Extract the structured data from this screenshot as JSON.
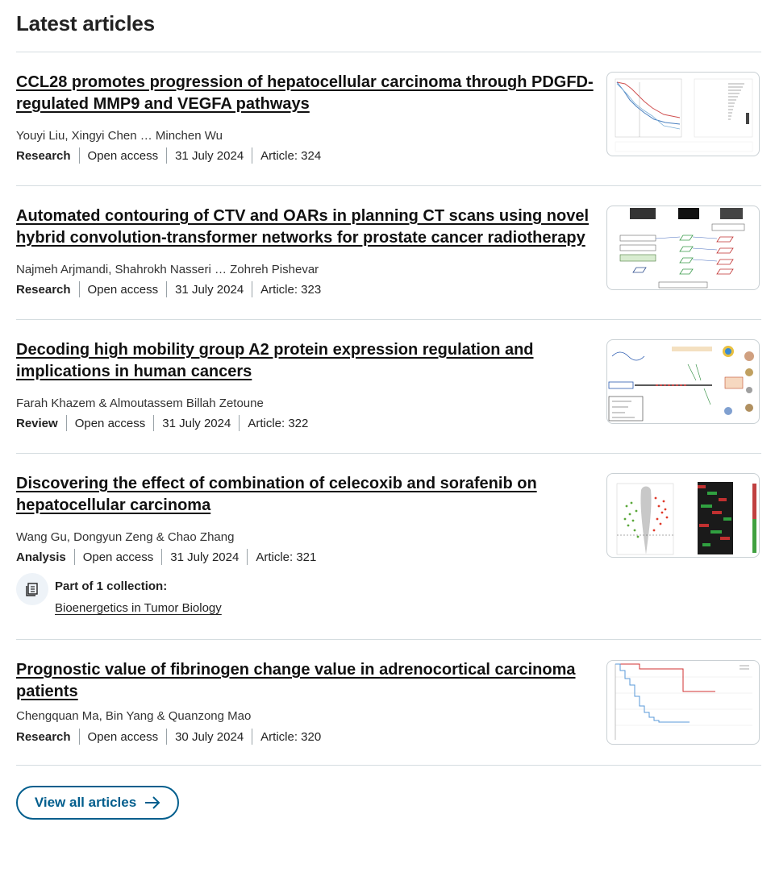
{
  "section_title": "Latest articles",
  "articles": [
    {
      "title": "CCL28 promotes progression of hepatocellular carcinoma through PDGFD-regulated MMP9 and VEGFA pathways",
      "authors": "Youyi Liu, Xingyi Chen … Minchen Wu",
      "type": "Research",
      "access": "Open access",
      "date": "31 July 2024",
      "number": "Article: 324"
    },
    {
      "title": "Automated contouring of CTV and OARs in planning CT scans using novel hybrid convolution-transformer networks for prostate cancer radiotherapy",
      "authors": "Najmeh Arjmandi, Shahrokh Nasseri … Zohreh Pishevar",
      "type": "Research",
      "access": "Open access",
      "date": "31 July 2024",
      "number": "Article: 323"
    },
    {
      "title": "Decoding high mobility group A2 protein expression regulation and implications in human cancers",
      "authors": "Farah Khazem & Almoutassem Billah Zetoune",
      "type": "Review",
      "access": "Open access",
      "date": "31 July 2024",
      "number": "Article: 322"
    },
    {
      "title": "Discovering the effect of combination of celecoxib and sorafenib on hepatocellular carcinoma",
      "authors": "Wang Gu, Dongyun Zeng & Chao Zhang",
      "type": "Analysis",
      "access": "Open access",
      "date": "31 July 2024",
      "number": "Article: 321",
      "collection_label": "Part of 1 collection:",
      "collection_link": "Bioenergetics in Tumor Biology"
    },
    {
      "title": "Prognostic value of fibrinogen change value in adrenocortical carcinoma patients",
      "authors": "Chengquan Ma, Bin Yang & Quanzong Mao",
      "type": "Research",
      "access": "Open access",
      "date": "30 July 2024",
      "number": "Article: 320"
    }
  ],
  "thumbnail_icons": [
    "survival-curve-figure",
    "network-architecture-figure",
    "pathway-diagram-figure",
    "volcano-heatmap-figure",
    "kaplan-meier-figure"
  ],
  "view_all_label": "View all articles",
  "colors": {
    "link_accent": "#025e8d",
    "divider": "#d5dde0",
    "text": "#222222"
  }
}
